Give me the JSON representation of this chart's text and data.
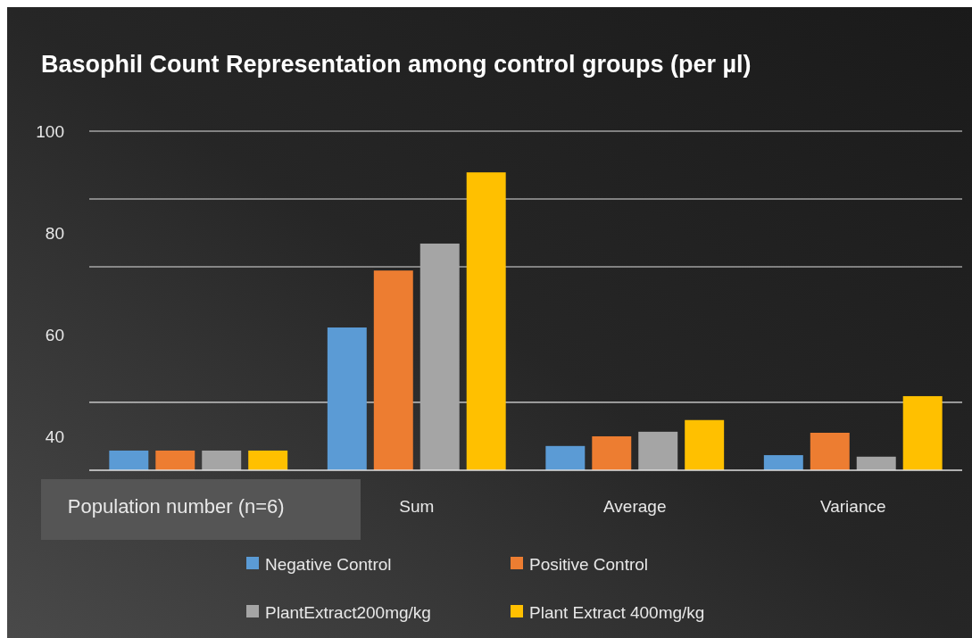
{
  "chart_data": {
    "type": "bar",
    "title": "Basophil Count Representation among control groups (per µl)",
    "categories": [
      "Population number (n=6)",
      "Sum",
      "Average",
      "Variance"
    ],
    "series": [
      {
        "name": "Negative Control",
        "color": "#5b9bd5",
        "values": [
          37.2,
          61.4,
          38.1,
          36.3
        ]
      },
      {
        "name": "Positive Control",
        "color": "#ed7d31",
        "values": [
          37.2,
          72.6,
          40.0,
          40.7
        ]
      },
      {
        "name": "PlantExtract200mg/kg",
        "color": "#a5a5a5",
        "values": [
          37.2,
          77.9,
          40.9,
          36.0
        ]
      },
      {
        "name": "Plant Extract 400mg/kg",
        "color": "#ffc000",
        "values": [
          37.2,
          91.9,
          43.2,
          47.9
        ]
      }
    ],
    "ylim": [
      33.33,
      100
    ],
    "yticks": [
      100,
      {
        "value": 86.67,
        "label": null
      },
      80,
      {
        "value": 73.33,
        "label": null
      },
      60,
      {
        "value": 46.67,
        "label": null
      },
      40
    ],
    "grid": "y",
    "legend": "bottom"
  }
}
